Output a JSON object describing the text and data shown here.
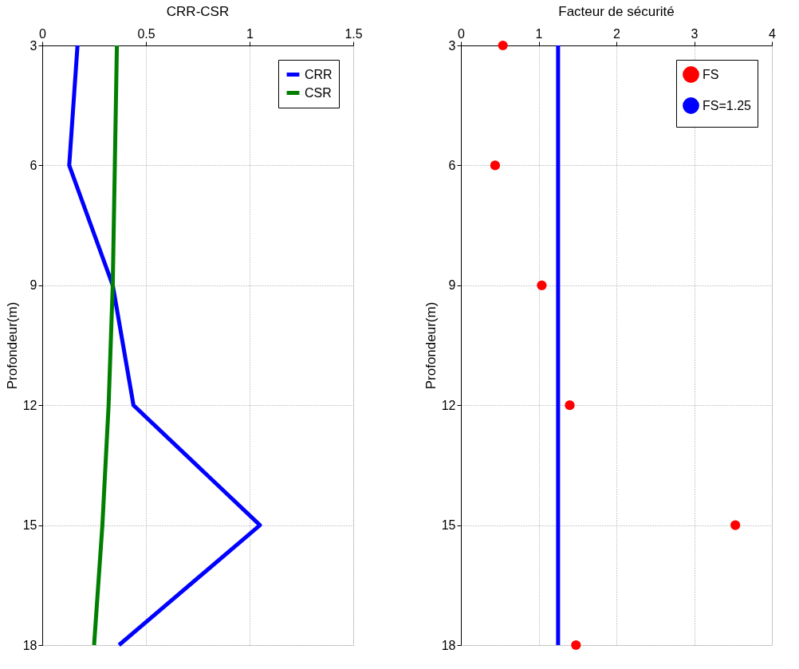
{
  "chart_data": [
    {
      "type": "line",
      "title": "CRR-CSR",
      "ylabel": "Profondeur(m)",
      "xlim": [
        0,
        1.5
      ],
      "xticks": [
        0,
        0.5,
        1,
        1.5
      ],
      "ylim": [
        18,
        3
      ],
      "yticks": [
        3,
        6,
        9,
        12,
        15,
        18
      ],
      "grid": true,
      "legend": "top right",
      "marker": "none",
      "line_style": "solid",
      "series": [
        {
          "name": "CRR",
          "color": "#0000ff",
          "x": [
            0.17,
            0.13,
            0.34,
            0.44,
            1.05,
            0.37
          ],
          "values": [
            3,
            6,
            9,
            12,
            15,
            18
          ]
        },
        {
          "name": "CSR",
          "color": "#007f00",
          "x": [
            0.36,
            0.35,
            0.34,
            0.32,
            0.29,
            0.25
          ],
          "values": [
            3,
            6,
            9,
            12,
            15,
            18
          ]
        }
      ]
    },
    {
      "type": "scatter",
      "title": "Facteur de sécurité",
      "ylabel": "Profondeur(m)",
      "xlim": [
        0,
        4
      ],
      "xticks": [
        0,
        1,
        2,
        3,
        4
      ],
      "ylim": [
        18,
        3
      ],
      "yticks": [
        3,
        6,
        9,
        12,
        15,
        18
      ],
      "grid": true,
      "legend": "top right",
      "marker": "circle",
      "series": [
        {
          "name": "FS",
          "color": "#ff0000",
          "x": [
            0.54,
            0.44,
            1.04,
            1.4,
            3.53,
            1.48
          ],
          "values": [
            3,
            6,
            9,
            12,
            15,
            18
          ]
        },
        {
          "name": "FS=1.25",
          "type": "line",
          "marker": "none",
          "line_style": "solid",
          "color": "#0000ff",
          "x": [
            1.25,
            1.25
          ],
          "values": [
            3,
            18
          ]
        }
      ]
    }
  ]
}
